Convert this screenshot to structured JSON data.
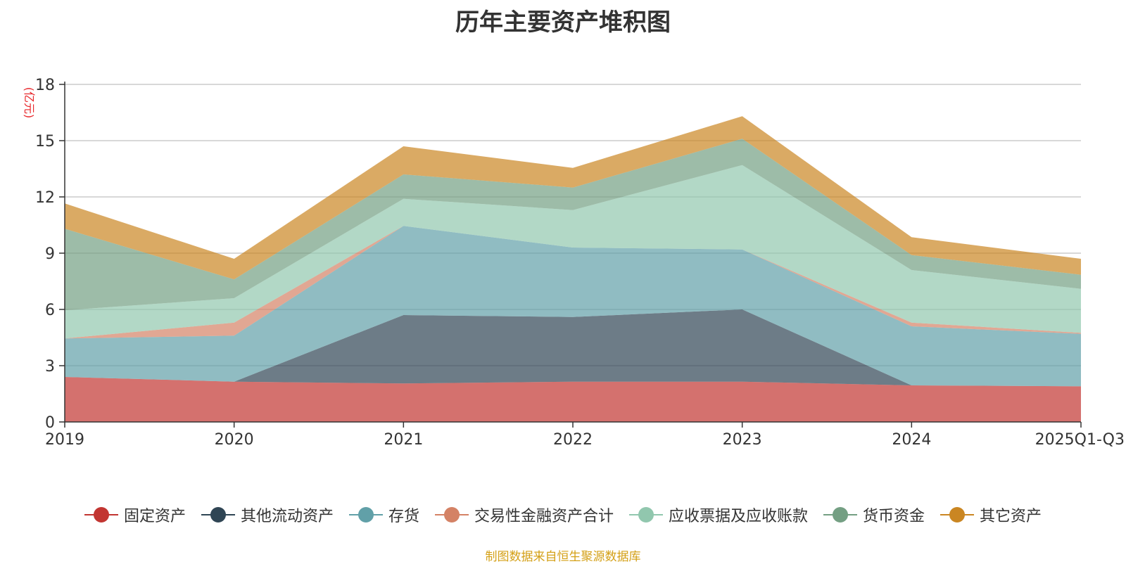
{
  "chart_data": {
    "type": "area",
    "stacked": true,
    "title": "历年主要资产堆积图",
    "unit_label": "(亿元)",
    "categories": [
      "2019",
      "2020",
      "2021",
      "2022",
      "2023",
      "2024",
      "2025Q1-Q3"
    ],
    "ylim": [
      0,
      18
    ],
    "yticks": [
      0,
      3,
      6,
      9,
      12,
      15,
      18
    ],
    "grid": true,
    "legend_position": "bottom",
    "series": [
      {
        "name": "固定资产",
        "color": "#c23531",
        "values": [
          2.4,
          2.15,
          2.05,
          2.15,
          2.15,
          1.95,
          1.9
        ]
      },
      {
        "name": "其他流动资产",
        "color": "#2f4554",
        "values": [
          0.0,
          0.0,
          3.65,
          3.45,
          3.85,
          0.0,
          0.0
        ]
      },
      {
        "name": "存货",
        "color": "#61a0a8",
        "values": [
          2.05,
          2.45,
          4.75,
          3.7,
          3.2,
          3.15,
          2.8
        ]
      },
      {
        "name": "交易性金融资产合计",
        "color": "#d48265",
        "values": [
          0.0,
          0.7,
          0.0,
          0.0,
          0.0,
          0.2,
          0.05
        ]
      },
      {
        "name": "应收票据及应收账款",
        "color": "#91c7ae",
        "values": [
          1.5,
          1.3,
          1.45,
          2.0,
          4.5,
          2.8,
          2.35
        ]
      },
      {
        "name": "货币资金",
        "color": "#749f83",
        "values": [
          4.35,
          1.0,
          1.3,
          1.2,
          1.4,
          0.8,
          0.75
        ]
      },
      {
        "name": "其它资产",
        "color": "#ca8622",
        "values": [
          1.35,
          1.1,
          1.5,
          1.05,
          1.2,
          0.95,
          0.85
        ]
      }
    ]
  },
  "source_note": "制图数据来自恒生聚源数据库"
}
